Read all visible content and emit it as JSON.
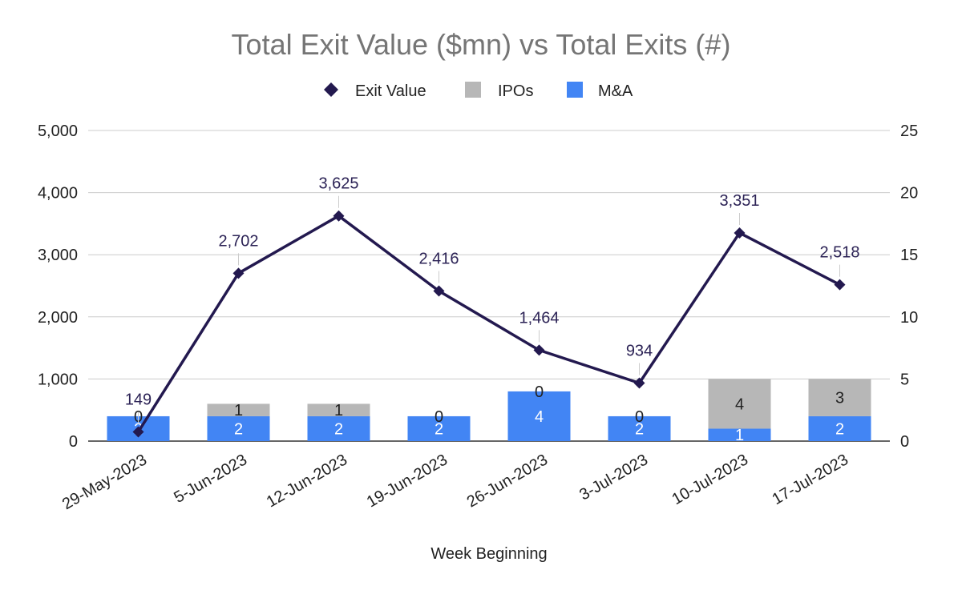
{
  "chart_data": {
    "type": "combo-stacked-bar-line",
    "title": "Total Exit Value ($mn) vs Total Exits (#)",
    "xlabel": "Week Beginning",
    "categories": [
      "29-May-2023",
      "5-Jun-2023",
      "12-Jun-2023",
      "19-Jun-2023",
      "26-Jun-2023",
      "3-Jul-2023",
      "10-Jul-2023",
      "17-Jul-2023"
    ],
    "left_axis": {
      "min": 0,
      "max": 5000,
      "ticks": [
        "0",
        "1,000",
        "2,000",
        "3,000",
        "4,000",
        "5,000"
      ],
      "tick_values": [
        0,
        1000,
        2000,
        3000,
        4000,
        5000
      ]
    },
    "right_axis": {
      "min": 0,
      "max": 25,
      "ticks": [
        "0",
        "5",
        "10",
        "15",
        "20",
        "25"
      ],
      "tick_values": [
        0,
        5,
        10,
        15,
        20,
        25
      ]
    },
    "legend": [
      {
        "name": "Exit Value",
        "marker": "diamond",
        "color": "#23194f"
      },
      {
        "name": "IPOs",
        "marker": "square",
        "color": "#b7b7b7"
      },
      {
        "name": "M&A",
        "marker": "square",
        "color": "#4285f4"
      }
    ],
    "series": [
      {
        "name": "M&A",
        "type": "bar",
        "axis": "right",
        "color": "#4285f4",
        "values": [
          2,
          2,
          2,
          2,
          4,
          2,
          1,
          2
        ],
        "labels": [
          "2",
          "2",
          "2",
          "2",
          "4",
          "2",
          "1",
          "2"
        ]
      },
      {
        "name": "IPOs",
        "type": "bar",
        "axis": "right",
        "color": "#b7b7b7",
        "values": [
          0,
          1,
          1,
          0,
          0,
          0,
          4,
          3
        ],
        "labels": [
          "0",
          "1",
          "1",
          "0",
          "0",
          "0",
          "4",
          "3"
        ]
      },
      {
        "name": "Exit Value",
        "type": "line",
        "axis": "left",
        "color": "#23194f",
        "values": [
          149,
          2702,
          3625,
          2416,
          1464,
          934,
          3351,
          2518
        ],
        "labels": [
          "149",
          "2,702",
          "3,625",
          "2,416",
          "1,464",
          "934",
          "3,351",
          "2,518"
        ]
      }
    ],
    "grid": true,
    "legend_position": "top-center"
  }
}
